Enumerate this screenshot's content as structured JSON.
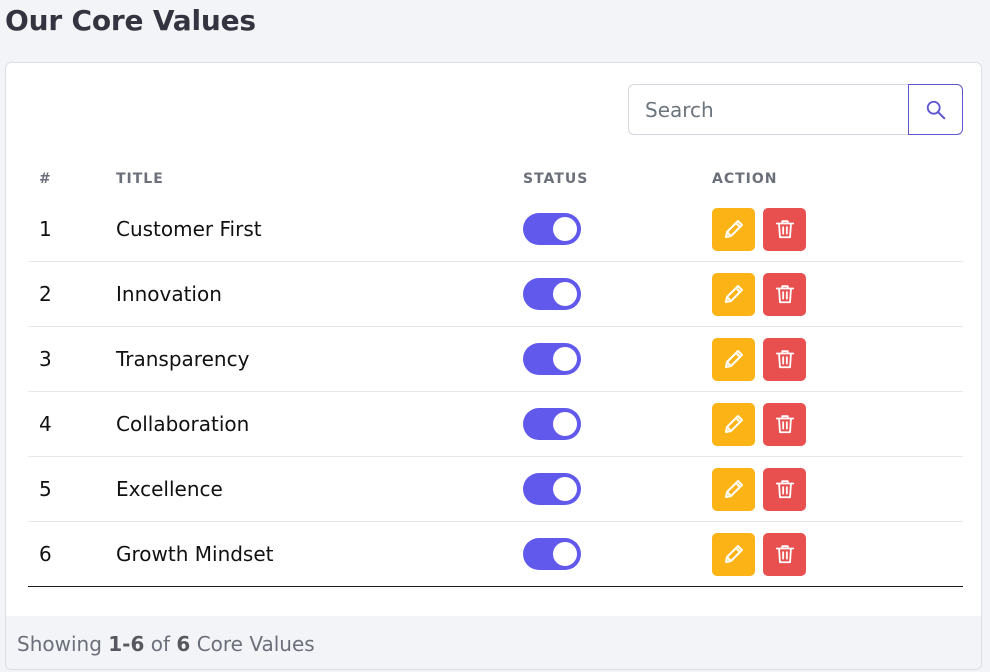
{
  "page": {
    "title": "Our Core Values"
  },
  "search": {
    "placeholder": "Search",
    "value": ""
  },
  "table": {
    "headers": {
      "num": "#",
      "title": "TITLE",
      "status": "STATUS",
      "action": "ACTION"
    },
    "rows": [
      {
        "num": "1",
        "title": "Customer First",
        "status": true
      },
      {
        "num": "2",
        "title": "Innovation",
        "status": true
      },
      {
        "num": "3",
        "title": "Transparency",
        "status": true
      },
      {
        "num": "4",
        "title": "Collaboration",
        "status": true
      },
      {
        "num": "5",
        "title": "Excellence",
        "status": true
      },
      {
        "num": "6",
        "title": "Growth Mindset",
        "status": true
      }
    ]
  },
  "footer": {
    "prefix": "Showing",
    "range": "1-6",
    "of": "of",
    "total": "6",
    "suffix": "Core Values"
  },
  "icons": {
    "search": "search-icon",
    "edit": "pencil-icon",
    "delete": "trash-icon"
  },
  "colors": {
    "accent": "#6159ec",
    "edit": "#fbb316",
    "delete": "#e8504f"
  }
}
